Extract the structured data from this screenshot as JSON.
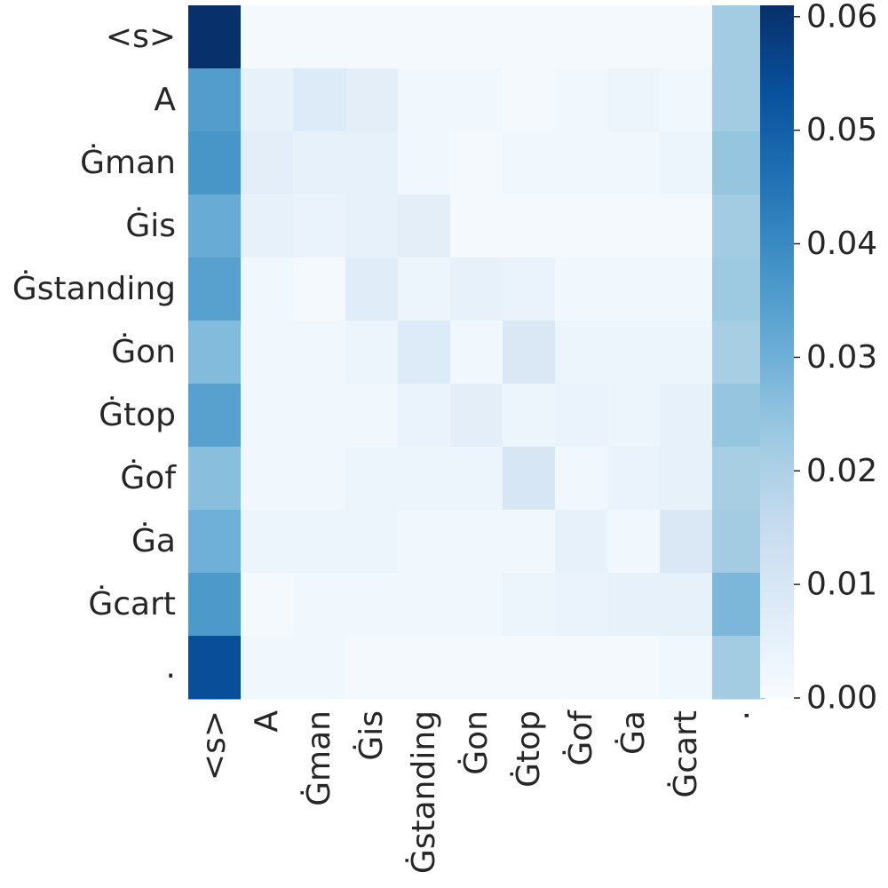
{
  "chart_data": {
    "type": "heatmap",
    "title": "",
    "xlabel": "",
    "ylabel": "",
    "x_categories": [
      "<s>",
      "A",
      "Ġman",
      "Ġis",
      "Ġstanding",
      "Ġon",
      "Ġtop",
      "Ġof",
      "Ġa",
      "Ġcart",
      "."
    ],
    "y_categories": [
      "<s>",
      "A",
      "Ġman",
      "Ġis",
      "Ġstanding",
      "Ġon",
      "Ġtop",
      "Ġof",
      "Ġa",
      "Ġcart",
      "."
    ],
    "values": [
      [
        0.061,
        0.001,
        0.001,
        0.001,
        0.001,
        0.001,
        0.001,
        0.001,
        0.001,
        0.001,
        0.022
      ],
      [
        0.035,
        0.005,
        0.008,
        0.006,
        0.002,
        0.002,
        0.001,
        0.002,
        0.003,
        0.002,
        0.022
      ],
      [
        0.037,
        0.006,
        0.005,
        0.005,
        0.002,
        0.001,
        0.002,
        0.002,
        0.002,
        0.003,
        0.024
      ],
      [
        0.031,
        0.005,
        0.004,
        0.005,
        0.006,
        0.001,
        0.001,
        0.001,
        0.001,
        0.001,
        0.022
      ],
      [
        0.034,
        0.002,
        0.001,
        0.007,
        0.003,
        0.005,
        0.004,
        0.002,
        0.002,
        0.002,
        0.023
      ],
      [
        0.027,
        0.002,
        0.002,
        0.003,
        0.008,
        0.002,
        0.009,
        0.003,
        0.003,
        0.003,
        0.021
      ],
      [
        0.034,
        0.002,
        0.002,
        0.002,
        0.004,
        0.006,
        0.003,
        0.004,
        0.003,
        0.005,
        0.024
      ],
      [
        0.026,
        0.002,
        0.002,
        0.003,
        0.003,
        0.003,
        0.01,
        0.002,
        0.004,
        0.005,
        0.021
      ],
      [
        0.03,
        0.003,
        0.003,
        0.003,
        0.002,
        0.002,
        0.002,
        0.005,
        0.002,
        0.009,
        0.022
      ],
      [
        0.036,
        0.001,
        0.002,
        0.002,
        0.002,
        0.002,
        0.003,
        0.004,
        0.005,
        0.005,
        0.028
      ],
      [
        0.054,
        0.002,
        0.002,
        0.001,
        0.001,
        0.001,
        0.001,
        0.001,
        0.001,
        0.002,
        0.022
      ]
    ],
    "colorscale": {
      "name": "Blues",
      "vmin": 0.0,
      "vmax": 0.061,
      "ticks": [
        0.0,
        0.01,
        0.02,
        0.03,
        0.04,
        0.05,
        0.06
      ],
      "tick_labels": [
        "0.00",
        "0.01",
        "0.02",
        "0.03",
        "0.04",
        "0.05",
        "0.06"
      ]
    },
    "grid": false
  }
}
